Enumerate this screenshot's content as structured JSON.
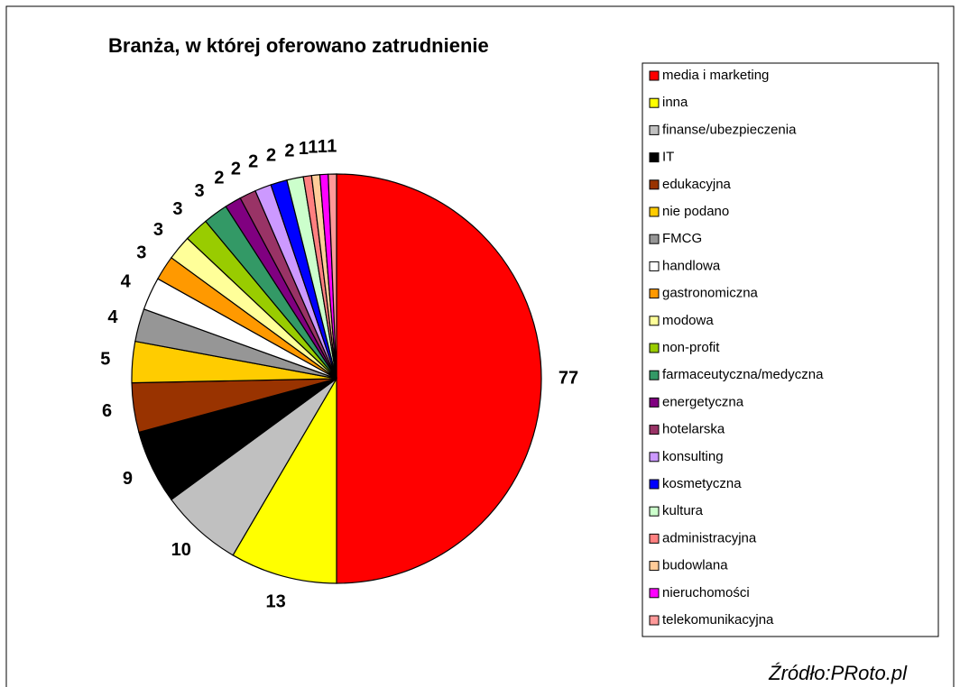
{
  "chart_data": {
    "type": "pie",
    "title": "Branża, w której oferowano zatrudnienie",
    "categories": [
      "media i marketing",
      "inna",
      "finanse/ubezpieczenia",
      "IT",
      "edukacyjna",
      "nie podano",
      "FMCG",
      "handlowa",
      "gastronomiczna",
      "modowa",
      "non-profit",
      "farmaceutyczna/medyczna",
      "energetyczna",
      "hotelarska",
      "konsulting",
      "kosmetyczna",
      "kultura",
      "administracyjna",
      "budowlana",
      "nieruchomości",
      "telekomunikacyjna"
    ],
    "values": [
      77,
      13,
      10,
      9,
      6,
      5,
      4,
      4,
      3,
      3,
      3,
      3,
      2,
      2,
      2,
      2,
      2,
      1,
      1,
      1,
      1
    ],
    "colors": [
      "#ff0000",
      "#ffff00",
      "#c0c0c0",
      "#000000",
      "#993300",
      "#ffcc00",
      "#969696",
      "#ffffff",
      "#ff9900",
      "#ffff99",
      "#99cc00",
      "#339966",
      "#800080",
      "#993366",
      "#cc99ff",
      "#0000ff",
      "#ccffcc",
      "#ff8080",
      "#ffcc99",
      "#ff00ff",
      "#ff9999"
    ],
    "legend": "right"
  },
  "source": "Źródło:PRoto.pl"
}
